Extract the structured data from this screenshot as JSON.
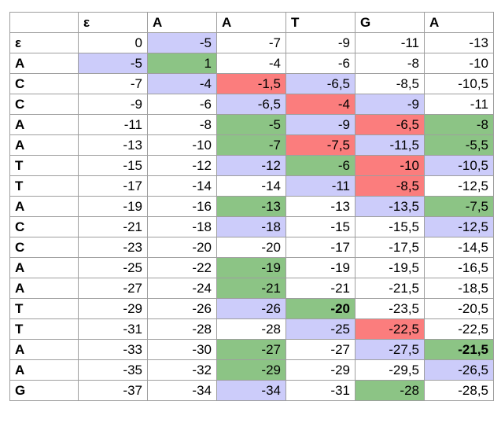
{
  "colors": {
    "w": "#ffffff",
    "g": "#8cc485",
    "b": "#ccccfa",
    "r": "#fb7d7d"
  },
  "table": {
    "header": [
      "",
      "ε",
      "A",
      "A",
      "T",
      "G",
      "A"
    ],
    "rows": [
      {
        "label": "ε",
        "cells": [
          {
            "v": "0",
            "c": "w"
          },
          {
            "v": "-5",
            "c": "b"
          },
          {
            "v": "-7",
            "c": "w"
          },
          {
            "v": "-9",
            "c": "w"
          },
          {
            "v": "-11",
            "c": "w"
          },
          {
            "v": "-13",
            "c": "w"
          }
        ]
      },
      {
        "label": "A",
        "cells": [
          {
            "v": "-5",
            "c": "b"
          },
          {
            "v": "1",
            "c": "g"
          },
          {
            "v": "-4",
            "c": "w"
          },
          {
            "v": "-6",
            "c": "w"
          },
          {
            "v": "-8",
            "c": "w"
          },
          {
            "v": "-10",
            "c": "w"
          }
        ]
      },
      {
        "label": "C",
        "cells": [
          {
            "v": "-7",
            "c": "w"
          },
          {
            "v": "-4",
            "c": "b"
          },
          {
            "v": "-1,5",
            "c": "r"
          },
          {
            "v": "-6,5",
            "c": "b"
          },
          {
            "v": "-8,5",
            "c": "w"
          },
          {
            "v": "-10,5",
            "c": "w"
          }
        ]
      },
      {
        "label": "C",
        "cells": [
          {
            "v": "-9",
            "c": "w"
          },
          {
            "v": "-6",
            "c": "w"
          },
          {
            "v": "-6,5",
            "c": "b"
          },
          {
            "v": "-4",
            "c": "r"
          },
          {
            "v": "-9",
            "c": "b"
          },
          {
            "v": "-11",
            "c": "w"
          }
        ]
      },
      {
        "label": "A",
        "cells": [
          {
            "v": "-11",
            "c": "w"
          },
          {
            "v": "-8",
            "c": "w"
          },
          {
            "v": "-5",
            "c": "g"
          },
          {
            "v": "-9",
            "c": "b"
          },
          {
            "v": "-6,5",
            "c": "r"
          },
          {
            "v": "-8",
            "c": "g"
          }
        ]
      },
      {
        "label": "A",
        "cells": [
          {
            "v": "-13",
            "c": "w"
          },
          {
            "v": "-10",
            "c": "w"
          },
          {
            "v": "-7",
            "c": "g"
          },
          {
            "v": "-7,5",
            "c": "r"
          },
          {
            "v": "-11,5",
            "c": "b"
          },
          {
            "v": "-5,5",
            "c": "g"
          }
        ]
      },
      {
        "label": "T",
        "cells": [
          {
            "v": "-15",
            "c": "w"
          },
          {
            "v": "-12",
            "c": "w"
          },
          {
            "v": "-12",
            "c": "b"
          },
          {
            "v": "-6",
            "c": "g"
          },
          {
            "v": "-10",
            "c": "r"
          },
          {
            "v": "-10,5",
            "c": "b"
          }
        ]
      },
      {
        "label": "T",
        "cells": [
          {
            "v": "-17",
            "c": "w"
          },
          {
            "v": "-14",
            "c": "w"
          },
          {
            "v": "-14",
            "c": "w"
          },
          {
            "v": "-11",
            "c": "b"
          },
          {
            "v": "-8,5",
            "c": "r"
          },
          {
            "v": "-12,5",
            "c": "w"
          }
        ]
      },
      {
        "label": "A",
        "cells": [
          {
            "v": "-19",
            "c": "w"
          },
          {
            "v": "-16",
            "c": "w"
          },
          {
            "v": "-13",
            "c": "g"
          },
          {
            "v": "-13",
            "c": "w"
          },
          {
            "v": "-13,5",
            "c": "b"
          },
          {
            "v": "-7,5",
            "c": "g"
          }
        ]
      },
      {
        "label": "C",
        "cells": [
          {
            "v": "-21",
            "c": "w"
          },
          {
            "v": "-18",
            "c": "w"
          },
          {
            "v": "-18",
            "c": "b"
          },
          {
            "v": "-15",
            "c": "w"
          },
          {
            "v": "-15,5",
            "c": "w"
          },
          {
            "v": "-12,5",
            "c": "b"
          }
        ]
      },
      {
        "label": "C",
        "cells": [
          {
            "v": "-23",
            "c": "w"
          },
          {
            "v": "-20",
            "c": "w"
          },
          {
            "v": "-20",
            "c": "w"
          },
          {
            "v": "-17",
            "c": "w"
          },
          {
            "v": "-17,5",
            "c": "w"
          },
          {
            "v": "-14,5",
            "c": "w"
          }
        ]
      },
      {
        "label": "A",
        "cells": [
          {
            "v": "-25",
            "c": "w"
          },
          {
            "v": "-22",
            "c": "w"
          },
          {
            "v": "-19",
            "c": "g"
          },
          {
            "v": "-19",
            "c": "w"
          },
          {
            "v": "-19,5",
            "c": "w"
          },
          {
            "v": "-16,5",
            "c": "w"
          }
        ]
      },
      {
        "label": "A",
        "cells": [
          {
            "v": "-27",
            "c": "w"
          },
          {
            "v": "-24",
            "c": "w"
          },
          {
            "v": "-21",
            "c": "g"
          },
          {
            "v": "-21",
            "c": "w"
          },
          {
            "v": "-21,5",
            "c": "w"
          },
          {
            "v": "-18,5",
            "c": "w"
          }
        ]
      },
      {
        "label": "T",
        "cells": [
          {
            "v": "-29",
            "c": "w"
          },
          {
            "v": "-26",
            "c": "w"
          },
          {
            "v": "-26",
            "c": "b"
          },
          {
            "v": "-20",
            "c": "g",
            "bold": true
          },
          {
            "v": "-23,5",
            "c": "w"
          },
          {
            "v": "-20,5",
            "c": "w"
          }
        ]
      },
      {
        "label": "T",
        "cells": [
          {
            "v": "-31",
            "c": "w"
          },
          {
            "v": "-28",
            "c": "w"
          },
          {
            "v": "-28",
            "c": "w"
          },
          {
            "v": "-25",
            "c": "b"
          },
          {
            "v": "-22,5",
            "c": "r"
          },
          {
            "v": "-22,5",
            "c": "w"
          }
        ]
      },
      {
        "label": "A",
        "cells": [
          {
            "v": "-33",
            "c": "w"
          },
          {
            "v": "-30",
            "c": "w"
          },
          {
            "v": "-27",
            "c": "g"
          },
          {
            "v": "-27",
            "c": "w"
          },
          {
            "v": "-27,5",
            "c": "b"
          },
          {
            "v": "-21,5",
            "c": "g",
            "bold": true
          }
        ]
      },
      {
        "label": "A",
        "cells": [
          {
            "v": "-35",
            "c": "w"
          },
          {
            "v": "-32",
            "c": "w"
          },
          {
            "v": "-29",
            "c": "g"
          },
          {
            "v": "-29",
            "c": "w"
          },
          {
            "v": "-29,5",
            "c": "w"
          },
          {
            "v": "-26,5",
            "c": "b"
          }
        ]
      },
      {
        "label": "G",
        "cells": [
          {
            "v": "-37",
            "c": "w"
          },
          {
            "v": "-34",
            "c": "w"
          },
          {
            "v": "-34",
            "c": "b"
          },
          {
            "v": "-31",
            "c": "w"
          },
          {
            "v": "-28",
            "c": "g"
          },
          {
            "v": "-28,5",
            "c": "w"
          }
        ]
      }
    ]
  }
}
